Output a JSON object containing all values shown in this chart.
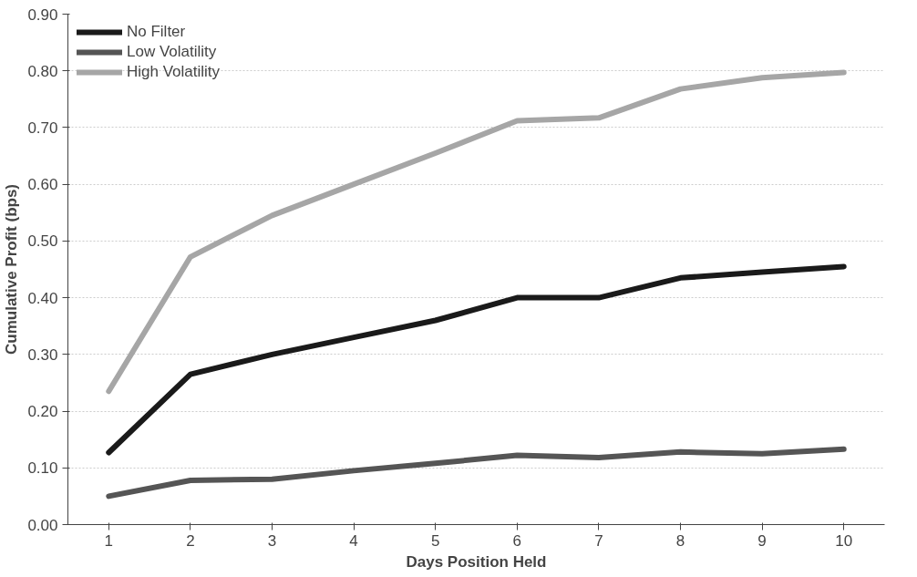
{
  "chart_data": {
    "type": "line",
    "xlabel": "Days Position Held",
    "ylabel": "Cumulative Profit (bps)",
    "categories": [
      "1",
      "2",
      "3",
      "4",
      "5",
      "6",
      "7",
      "8",
      "9",
      "10"
    ],
    "series": [
      {
        "name": "No Filter",
        "color": "#1a1a1a",
        "values": [
          0.127,
          0.265,
          0.3,
          0.33,
          0.36,
          0.4,
          0.4,
          0.435,
          0.445,
          0.455
        ]
      },
      {
        "name": "Low Volatility",
        "color": "#555555",
        "values": [
          0.05,
          0.078,
          0.08,
          0.095,
          0.108,
          0.122,
          0.118,
          0.128,
          0.125,
          0.133
        ]
      },
      {
        "name": "High Volatility",
        "color": "#a6a6a6",
        "values": [
          0.235,
          0.472,
          0.545,
          0.6,
          0.655,
          0.712,
          0.717,
          0.768,
          0.788,
          0.797
        ]
      }
    ],
    "ylim": [
      0,
      0.9
    ],
    "yticks": [
      {
        "value": 0,
        "label": "0.00"
      },
      {
        "value": 0.1,
        "label": "0.10"
      },
      {
        "value": 0.2,
        "label": "0.20"
      },
      {
        "value": 0.3,
        "label": "0.30"
      },
      {
        "value": 0.4,
        "label": "0.40"
      },
      {
        "value": 0.5,
        "label": "0.50"
      },
      {
        "value": 0.6,
        "label": "0.60"
      },
      {
        "value": 0.7,
        "label": "0.70"
      },
      {
        "value": 0.8,
        "label": "0.80"
      },
      {
        "value": 0.9,
        "label": "0.90"
      }
    ],
    "grid": "y",
    "legend": "top left",
    "marker": "none",
    "line_style": "solid"
  }
}
